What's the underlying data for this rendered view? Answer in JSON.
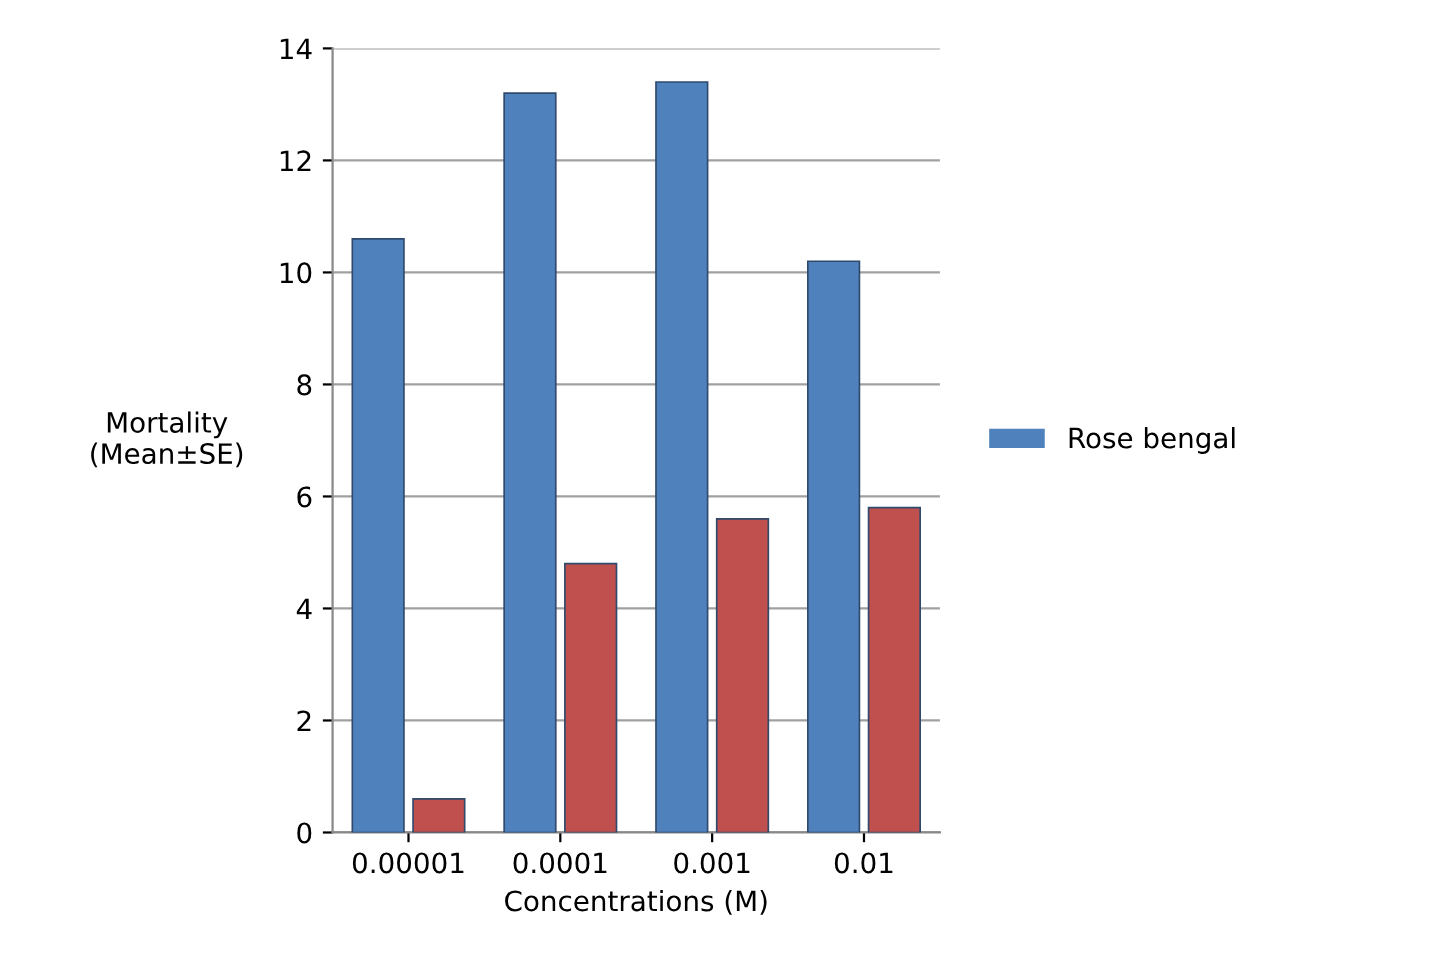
{
  "chart_data": {
    "type": "bar",
    "xlabel": "Concentrations (M)",
    "ylabel": "Mortality\n(Mean±SE)",
    "categories": [
      "0.00001",
      "0.0001",
      "0.001",
      "0.01"
    ],
    "series": [
      {
        "name": "Rose bengal",
        "color": "#4f81bd",
        "values": [
          10.6,
          13.2,
          13.4,
          10.2
        ]
      },
      {
        "color": "#c0504d",
        "values": [
          0.6,
          4.8,
          5.6,
          5.8
        ]
      }
    ],
    "ylim": [
      0,
      14
    ],
    "yticks": [
      0,
      2,
      4,
      6,
      8,
      10,
      12,
      14
    ],
    "grid": "y",
    "legend": "right"
  }
}
